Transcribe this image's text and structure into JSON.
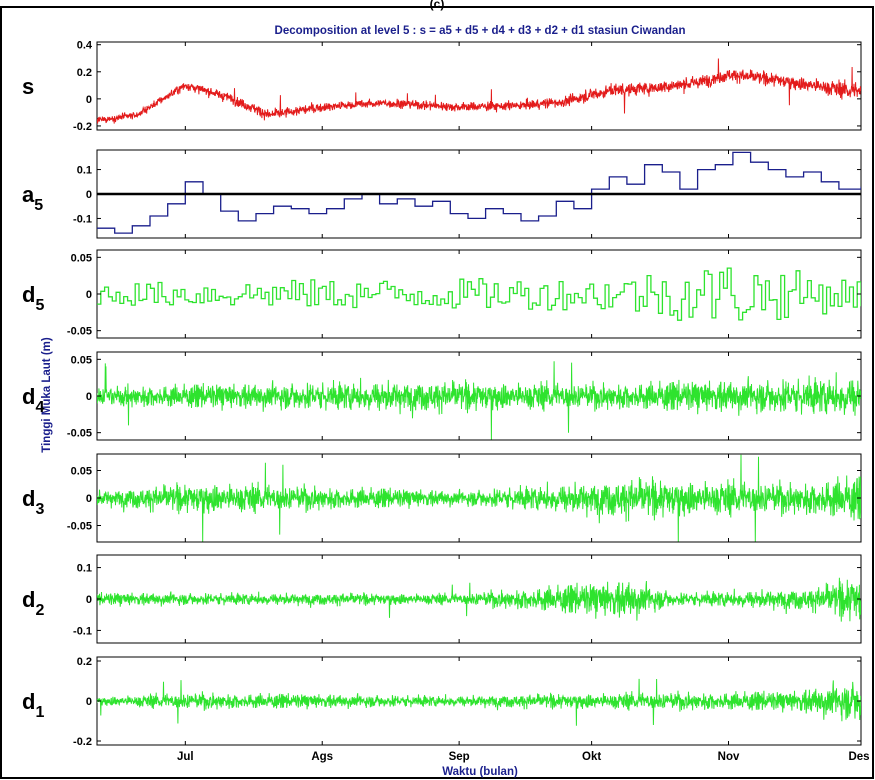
{
  "figure": {
    "partial_heading": "(c)",
    "title": "Decomposition at level 5 : s = a5 + d5 + d4 + d3 + d2 + d1 stasiun Ciwandan",
    "ylabel": "Tinggi Muka Laut (m)",
    "xlabel": "Waktu (bulan)"
  },
  "chart_data": {
    "type": "line",
    "title": "Decomposition at level 5 : s = a5 + d5 + d4 + d3 + d2 + d1 stasiun Ciwandan",
    "xlabel": "Waktu (bulan)",
    "ylabel": "Tinggi Muka Laut (m)",
    "x_tick_labels": [
      "Jul",
      "Ags",
      "Sep",
      "Okt",
      "Nov",
      "Des"
    ],
    "x_tick_dates": [
      "2010-07-01",
      "2010-08-01",
      "2010-09-01",
      "2010-10-01",
      "2010-11-01",
      "2010-12-01"
    ],
    "x_range": [
      "2010-06-11",
      "2010-12-01"
    ],
    "colors": {
      "s": "#e31b1b",
      "a5": "#1a1f8c",
      "detail": "#2ee32e",
      "title": "#1a1f8c",
      "zero_line": "#000000"
    },
    "panels": [
      {
        "name": "s",
        "sub": "",
        "style": "noisy",
        "color": "#e31b1b",
        "ylim": [
          -0.23,
          0.42
        ],
        "yticks": [
          -0.2,
          0,
          0.2,
          0.4
        ],
        "ytick_labels": [
          "-0.2",
          "0",
          "0.2",
          "0.4"
        ],
        "envelope": [
          [
            "2010-06-11",
            -0.16,
            0.04
          ],
          [
            "2010-06-20",
            -0.12,
            0.04
          ],
          [
            "2010-07-01",
            0.1,
            0.05
          ],
          [
            "2010-07-10",
            0.02,
            0.05
          ],
          [
            "2010-07-20",
            -0.12,
            0.06
          ],
          [
            "2010-08-01",
            -0.06,
            0.05
          ],
          [
            "2010-08-15",
            -0.03,
            0.05
          ],
          [
            "2010-09-01",
            -0.06,
            0.05
          ],
          [
            "2010-09-15",
            -0.05,
            0.05
          ],
          [
            "2010-09-25",
            -0.02,
            0.06
          ],
          [
            "2010-10-05",
            0.06,
            0.07
          ],
          [
            "2010-10-15",
            0.08,
            0.07
          ],
          [
            "2010-10-25",
            0.12,
            0.07
          ],
          [
            "2010-11-01",
            0.18,
            0.07
          ],
          [
            "2010-11-10",
            0.15,
            0.07
          ],
          [
            "2010-11-20",
            0.1,
            0.08
          ],
          [
            "2010-12-01",
            0.05,
            0.1
          ]
        ]
      },
      {
        "name": "a",
        "sub": "5",
        "style": "step",
        "color": "#1a1f8c",
        "zero_line": true,
        "ylim": [
          -0.18,
          0.18
        ],
        "yticks": [
          -0.1,
          0,
          0.1
        ],
        "ytick_labels": [
          "-0.1",
          "0",
          "0.1"
        ],
        "points": [
          [
            "2010-06-11",
            -0.14
          ],
          [
            "2010-06-15",
            -0.16
          ],
          [
            "2010-06-19",
            -0.13
          ],
          [
            "2010-06-23",
            -0.09
          ],
          [
            "2010-06-27",
            -0.04
          ],
          [
            "2010-07-01",
            0.05
          ],
          [
            "2010-07-05",
            0.0
          ],
          [
            "2010-07-09",
            -0.07
          ],
          [
            "2010-07-13",
            -0.11
          ],
          [
            "2010-07-17",
            -0.08
          ],
          [
            "2010-07-21",
            -0.05
          ],
          [
            "2010-07-25",
            -0.06
          ],
          [
            "2010-07-29",
            -0.08
          ],
          [
            "2010-08-02",
            -0.06
          ],
          [
            "2010-08-06",
            -0.02
          ],
          [
            "2010-08-10",
            0.0
          ],
          [
            "2010-08-14",
            -0.04
          ],
          [
            "2010-08-18",
            -0.02
          ],
          [
            "2010-08-22",
            -0.05
          ],
          [
            "2010-08-26",
            -0.03
          ],
          [
            "2010-08-30",
            -0.08
          ],
          [
            "2010-09-03",
            -0.1
          ],
          [
            "2010-09-07",
            -0.06
          ],
          [
            "2010-09-11",
            -0.08
          ],
          [
            "2010-09-15",
            -0.11
          ],
          [
            "2010-09-19",
            -0.09
          ],
          [
            "2010-09-23",
            -0.03
          ],
          [
            "2010-09-27",
            -0.06
          ],
          [
            "2010-10-01",
            0.02
          ],
          [
            "2010-10-05",
            0.07
          ],
          [
            "2010-10-09",
            0.04
          ],
          [
            "2010-10-13",
            0.12
          ],
          [
            "2010-10-17",
            0.09
          ],
          [
            "2010-10-21",
            0.02
          ],
          [
            "2010-10-25",
            0.1
          ],
          [
            "2010-10-29",
            0.12
          ],
          [
            "2010-11-02",
            0.17
          ],
          [
            "2010-11-06",
            0.13
          ],
          [
            "2010-11-10",
            0.1
          ],
          [
            "2010-11-14",
            0.07
          ],
          [
            "2010-11-18",
            0.09
          ],
          [
            "2010-11-22",
            0.05
          ],
          [
            "2010-11-26",
            0.02
          ],
          [
            "2010-12-01",
            0.03
          ]
        ]
      },
      {
        "name": "d",
        "sub": "5",
        "style": "step",
        "color": "#2ee32e",
        "ylim": [
          -0.06,
          0.06
        ],
        "yticks": [
          -0.05,
          0,
          0.05
        ],
        "ytick_labels": [
          "-0.05",
          "0",
          "0.05"
        ],
        "envelope": [
          [
            "2010-06-11",
            0,
            0.015
          ],
          [
            "2010-08-01",
            0,
            0.02
          ],
          [
            "2010-10-01",
            0,
            0.022
          ],
          [
            "2010-11-01",
            0,
            0.045
          ],
          [
            "2010-12-01",
            0,
            0.02
          ]
        ]
      },
      {
        "name": "d",
        "sub": "4",
        "style": "noisy",
        "color": "#2ee32e",
        "ylim": [
          -0.06,
          0.06
        ],
        "yticks": [
          -0.05,
          0,
          0.05
        ],
        "ytick_labels": [
          "-0.05",
          "0",
          "0.05"
        ],
        "envelope": [
          [
            "2010-06-11",
            0,
            0.02
          ],
          [
            "2010-08-15",
            0,
            0.03
          ],
          [
            "2010-10-01",
            0,
            0.025
          ],
          [
            "2010-11-15",
            0,
            0.035
          ],
          [
            "2010-12-01",
            0,
            0.04
          ]
        ]
      },
      {
        "name": "d",
        "sub": "3",
        "style": "noisy",
        "color": "#2ee32e",
        "ylim": [
          -0.08,
          0.08
        ],
        "yticks": [
          -0.05,
          0,
          0.05
        ],
        "ytick_labels": [
          "-0.05",
          "0",
          "0.05"
        ],
        "envelope": [
          [
            "2010-06-11",
            0,
            0.02
          ],
          [
            "2010-07-05",
            0,
            0.04
          ],
          [
            "2010-09-01",
            0,
            0.02
          ],
          [
            "2010-10-10",
            0,
            0.05
          ],
          [
            "2010-11-15",
            0,
            0.04
          ],
          [
            "2010-12-01",
            0,
            0.06
          ]
        ]
      },
      {
        "name": "d",
        "sub": "2",
        "style": "noisy",
        "color": "#2ee32e",
        "ylim": [
          -0.14,
          0.14
        ],
        "yticks": [
          -0.1,
          0,
          0.1
        ],
        "ytick_labels": [
          "-0.1",
          "0",
          "0.1"
        ],
        "envelope": [
          [
            "2010-06-11",
            0,
            0.03
          ],
          [
            "2010-09-01",
            0,
            0.025
          ],
          [
            "2010-10-10",
            0,
            0.09
          ],
          [
            "2010-10-20",
            0,
            0.03
          ],
          [
            "2010-11-20",
            0,
            0.05
          ],
          [
            "2010-12-01",
            0,
            0.11
          ]
        ]
      },
      {
        "name": "d",
        "sub": "1",
        "style": "noisy",
        "color": "#2ee32e",
        "ylim": [
          -0.22,
          0.22
        ],
        "yticks": [
          -0.2,
          0,
          0.2
        ],
        "ytick_labels": [
          "-0.2",
          "0",
          "0.2"
        ],
        "envelope": [
          [
            "2010-06-11",
            0,
            0.03
          ],
          [
            "2010-07-01",
            0,
            0.06
          ],
          [
            "2010-09-01",
            0,
            0.04
          ],
          [
            "2010-10-10",
            0,
            0.06
          ],
          [
            "2010-11-15",
            0,
            0.07
          ],
          [
            "2010-12-01",
            0,
            0.16
          ]
        ]
      }
    ]
  }
}
